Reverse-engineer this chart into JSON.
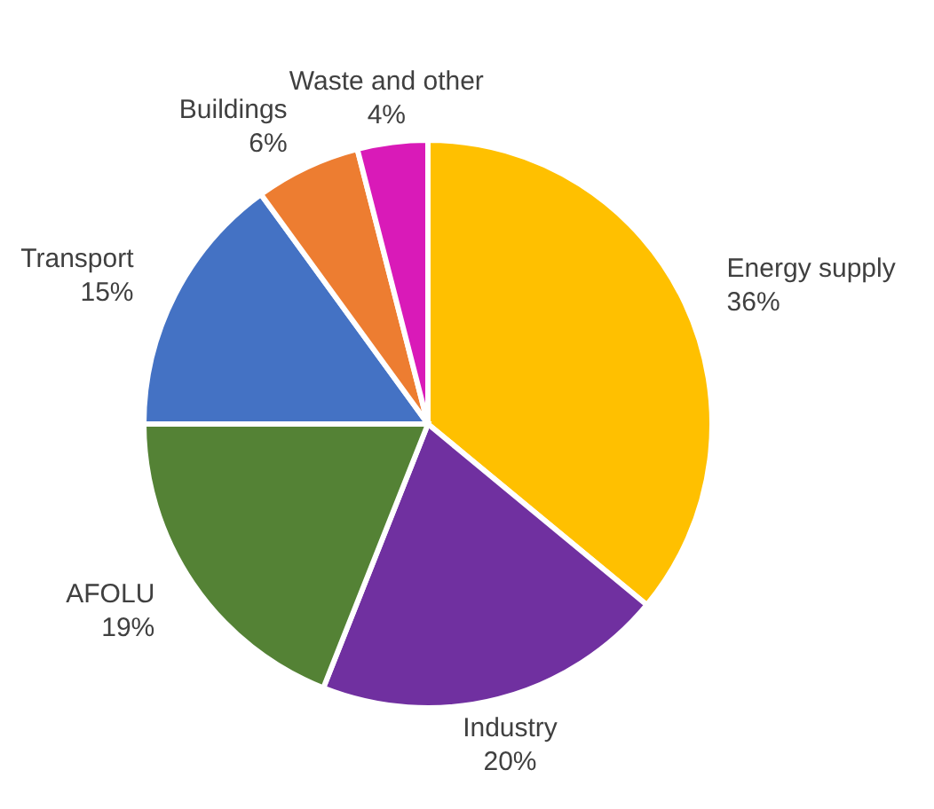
{
  "chart_data": {
    "type": "pie",
    "categories": [
      "Energy supply",
      "Industry",
      "AFOLU",
      "Transport",
      "Buildings",
      "Waste and other"
    ],
    "values": [
      36,
      20,
      19,
      15,
      6,
      4
    ],
    "value_labels": [
      "36%",
      "20%",
      "19%",
      "15%",
      "6%",
      "4%"
    ],
    "colors": [
      "#ffc000",
      "#7030a0",
      "#548235",
      "#4472c4",
      "#ed7d31",
      "#d91ab8"
    ],
    "legend": false
  }
}
